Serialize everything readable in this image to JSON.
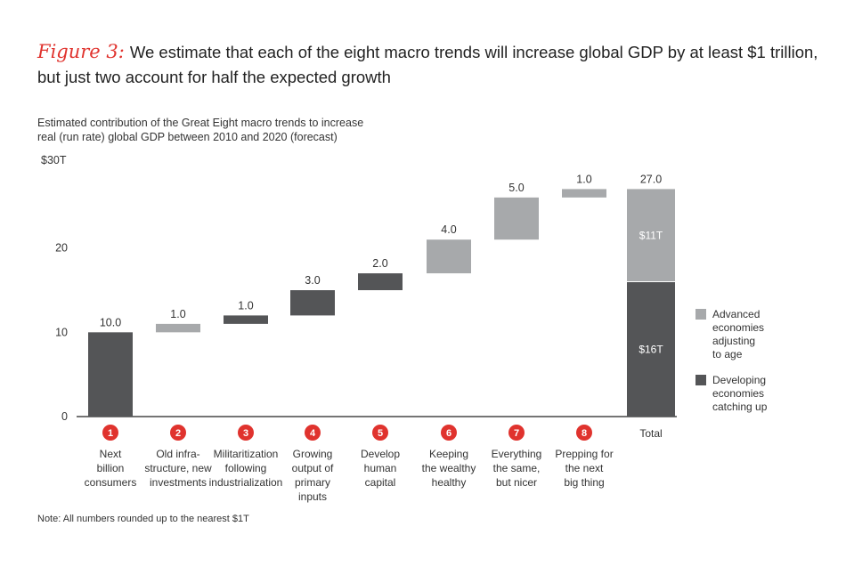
{
  "title": {
    "figure_label": "Figure 3:",
    "text": "We estimate that each of the eight macro trends will increase global GDP by at least $1 trillion, but just two account for half the expected growth"
  },
  "subtitle_lines": [
    "Estimated contribution of the Great Eight macro trends to increase",
    "real (run rate) global GDP between 2010 and 2020 (forecast)"
  ],
  "note": "Note: All numbers rounded up to the nearest $1T",
  "chart_data": {
    "type": "waterfall",
    "ylim": [
      0,
      30
    ],
    "yticks": [
      {
        "value": 0,
        "label": "0"
      },
      {
        "value": 10,
        "label": "10"
      },
      {
        "value": 20,
        "label": "20"
      },
      {
        "value": 30,
        "label": "$30T"
      }
    ],
    "bars": [
      {
        "num": "1",
        "label_lines": [
          "Next",
          "billion",
          "consumers"
        ],
        "value": 10.0,
        "value_label": "10.0",
        "group": "developing"
      },
      {
        "num": "2",
        "label_lines": [
          "Old infra-",
          "structure, new",
          "investments"
        ],
        "value": 1.0,
        "value_label": "1.0",
        "group": "advanced"
      },
      {
        "num": "3",
        "label_lines": [
          "Militaritization",
          "following",
          "industrialization"
        ],
        "value": 1.0,
        "value_label": "1.0",
        "group": "developing"
      },
      {
        "num": "4",
        "label_lines": [
          "Growing",
          "output of",
          "primary",
          "inputs"
        ],
        "value": 3.0,
        "value_label": "3.0",
        "group": "developing"
      },
      {
        "num": "5",
        "label_lines": [
          "Develop",
          "human",
          "capital"
        ],
        "value": 2.0,
        "value_label": "2.0",
        "group": "developing"
      },
      {
        "num": "6",
        "label_lines": [
          "Keeping",
          "the wealthy",
          "healthy"
        ],
        "value": 4.0,
        "value_label": "4.0",
        "group": "advanced"
      },
      {
        "num": "7",
        "label_lines": [
          "Everything",
          "the same,",
          "but nicer"
        ],
        "value": 5.0,
        "value_label": "5.0",
        "group": "advanced"
      },
      {
        "num": "8",
        "label_lines": [
          "Prepping for",
          "the next",
          "big thing"
        ],
        "value": 1.0,
        "value_label": "1.0",
        "group": "advanced"
      }
    ],
    "total": {
      "label": "Total",
      "value": 27.0,
      "value_label": "27.0",
      "segments": [
        {
          "group": "developing",
          "value": 16,
          "label": "$16T"
        },
        {
          "group": "advanced",
          "value": 11,
          "label": "$11T"
        }
      ]
    },
    "legend": [
      {
        "group": "advanced",
        "lines": [
          "Advanced",
          "economies",
          "adjusting",
          "to age"
        ]
      },
      {
        "group": "developing",
        "lines": [
          "Developing",
          "economies",
          "catching up"
        ]
      }
    ],
    "colors": {
      "advanced": "#a7a9ab",
      "developing": "#545557",
      "badge": "#e0332e",
      "axis": "#222222"
    }
  }
}
